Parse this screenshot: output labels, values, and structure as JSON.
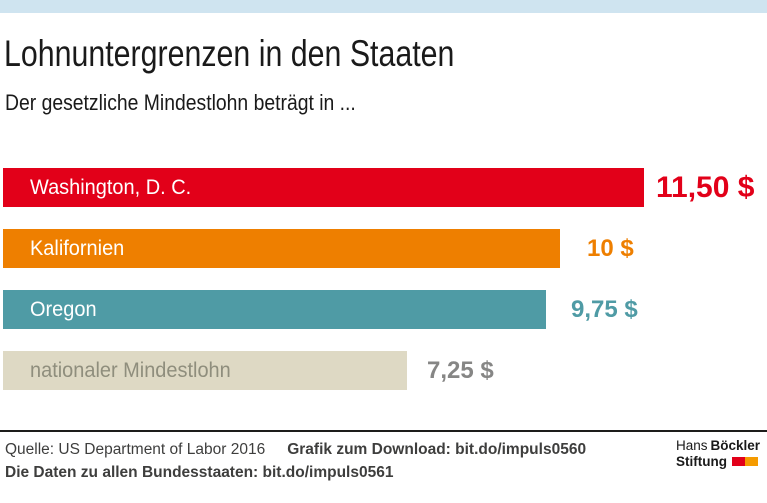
{
  "header": {
    "title": "Lohnuntergrenzen in den Staaten",
    "subtitle": "Der gesetzliche Mindestlohn beträgt in ..."
  },
  "chart_data": {
    "type": "bar",
    "orientation": "horizontal",
    "title": "Lohnuntergrenzen in den Staaten",
    "subtitle": "Der gesetzliche Mindestlohn beträgt in ...",
    "unit": "$",
    "axis_visible": false,
    "grid": false,
    "value_label_position": "right-of-bar",
    "xlim": [
      0,
      11.5
    ],
    "categories": [
      "Washington, D. C.",
      "Kalifornien",
      "Oregon",
      "nationaler Mindestlohn"
    ],
    "values": [
      11.5,
      10,
      9.75,
      7.25
    ],
    "bars": [
      {
        "label": "Washington, D. C.",
        "value": 11.5,
        "value_label": "11,50 $",
        "color": "#e20019",
        "label_color": "#ffffff",
        "value_color": "#e20019"
      },
      {
        "label": "Kalifornien",
        "value": 10,
        "value_label": "10 $",
        "color": "#ee7f00",
        "label_color": "#ffffff",
        "value_color": "#ee7f00"
      },
      {
        "label": "Oregon",
        "value": 9.75,
        "value_label": "9,75 $",
        "color": "#4f9ba5",
        "label_color": "#ffffff",
        "value_color": "#4f9ba5"
      },
      {
        "label": "nationaler Mindestlohn",
        "value": 7.25,
        "value_label": "7,25 $",
        "color": "#ded9c4",
        "label_color": "#8f8e7d",
        "value_color": "#868685"
      }
    ]
  },
  "footer": {
    "source": "Quelle: US Department of Labor 2016",
    "download": "Grafik zum Download: bit.do/impuls0560",
    "all_states": "Die Daten zu allen Bundesstaaten: bit.do/impuls0561"
  },
  "logo": {
    "line1_regular": "Hans",
    "line1_bold": "Böckler",
    "line2_bold": "Stiftung"
  },
  "theme": {
    "strip_color": "#cfe4f0",
    "title_color": "#1a1a1a",
    "footer_text_color": "#3e3e3d",
    "divider_color": "#1d1d1b",
    "logo_red": "#e2001a",
    "logo_orange": "#f59b00"
  }
}
